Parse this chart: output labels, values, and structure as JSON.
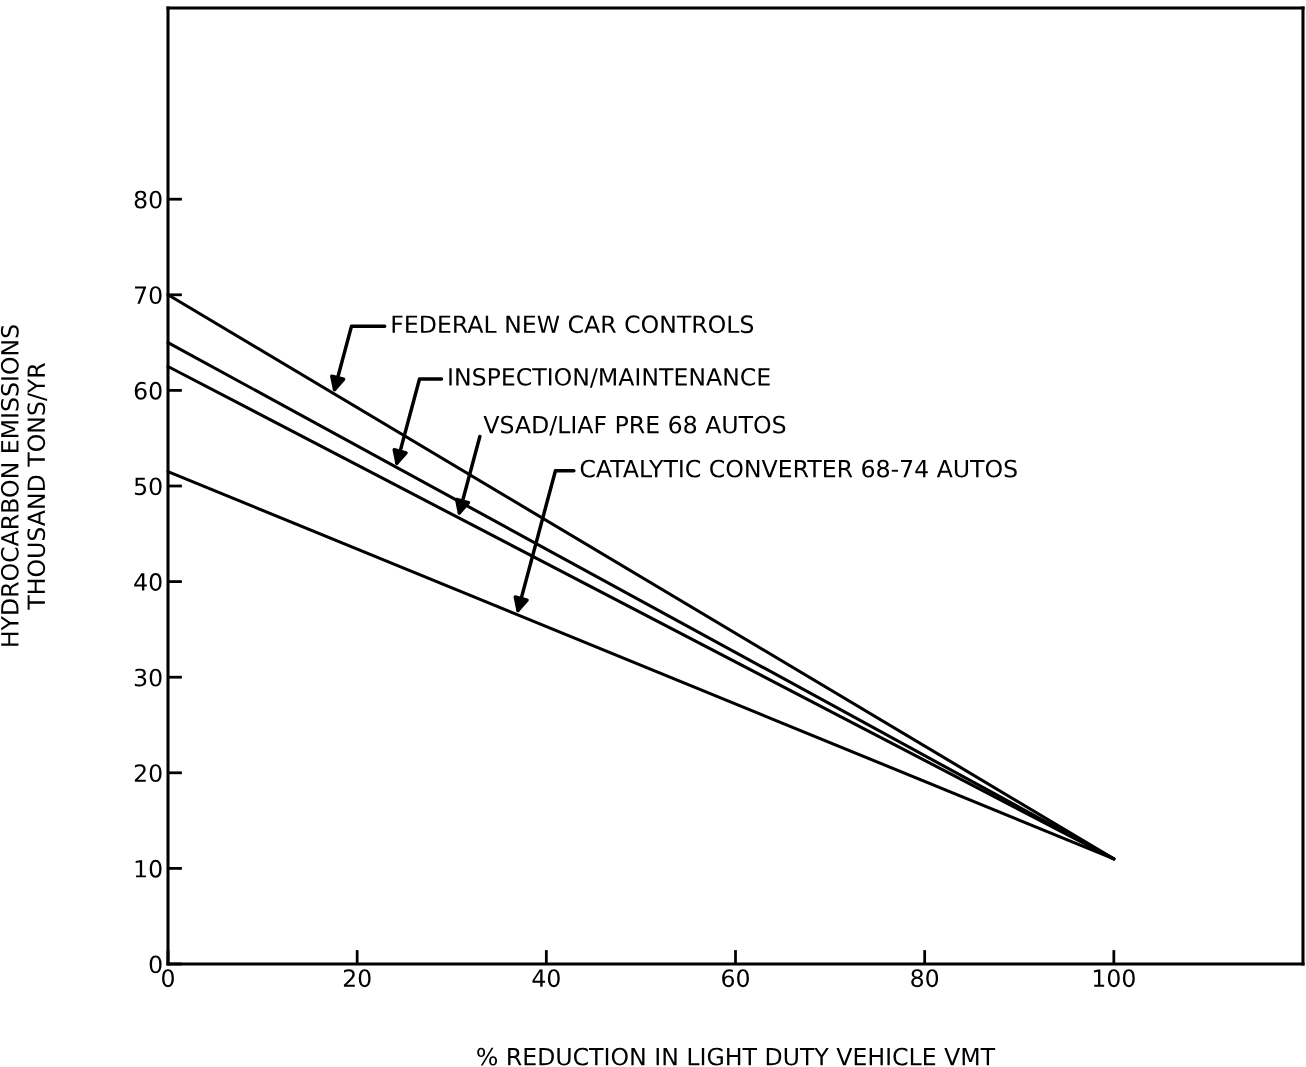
{
  "chart_data": {
    "type": "line",
    "xlabel": "% REDUCTION IN LIGHT DUTY VEHICLE VMT",
    "ylabel": "HYDROCARBON EMISSIONS\nTHOUSAND TONS/YR",
    "xlim": [
      0,
      120
    ],
    "ylim": [
      0,
      100
    ],
    "xticks": [
      0,
      20,
      40,
      60,
      80,
      100
    ],
    "yticks": [
      0,
      10,
      20,
      30,
      40,
      50,
      60,
      70,
      80
    ],
    "grid": false,
    "marker": "none",
    "line_style": "solid",
    "x": [
      0,
      100
    ],
    "series": [
      {
        "color": "#000000",
        "values": [
          70,
          11
        ]
      },
      {
        "color": "#000000",
        "values": [
          65,
          11
        ]
      },
      {
        "color": "#000000",
        "values": [
          62.5,
          11
        ]
      },
      {
        "color": "#000000",
        "values": [
          51.5,
          11
        ]
      }
    ],
    "annotations": [
      {
        "text": "FEDERAL NEW CAR CONTROLS",
        "x": 17.5,
        "y": 59.7
      },
      {
        "text": "INSPECTION/MAINTENANCE",
        "x": 24.1,
        "y": 52
      },
      {
        "text": "VSAD/LIAF PRE 68 AUTOS",
        "x": 30.7,
        "y": 46.8
      },
      {
        "text": "CATALYTIC CONVERTER 68-74 AUTOS",
        "x": 36.9,
        "y": 36.6
      }
    ]
  }
}
